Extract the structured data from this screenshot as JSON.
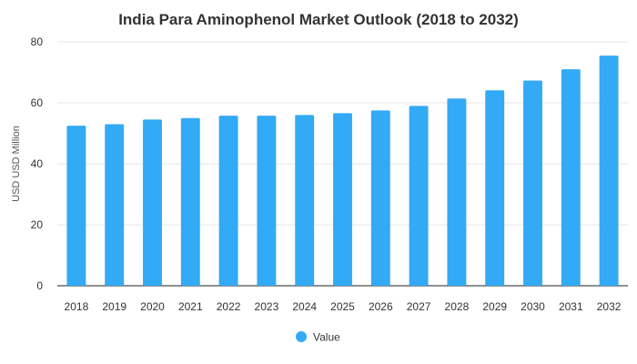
{
  "chart_data": {
    "type": "bar",
    "title": "India Para Aminophenol Market Outlook (2018 to 2032)",
    "xlabel": "",
    "ylabel": "USD USD Million",
    "categories": [
      "2018",
      "2019",
      "2020",
      "2021",
      "2022",
      "2023",
      "2024",
      "2025",
      "2026",
      "2027",
      "2028",
      "2029",
      "2030",
      "2031",
      "2032"
    ],
    "series": [
      {
        "name": "Value",
        "color": "#33aaf5",
        "values": [
          52.5,
          53.0,
          54.5,
          55.0,
          55.8,
          55.8,
          56.0,
          56.6,
          57.5,
          59.0,
          61.4,
          64.1,
          67.3,
          71.0,
          75.5
        ]
      }
    ],
    "ylim": [
      0,
      80
    ],
    "yticks": [
      0,
      20,
      40,
      60,
      80
    ],
    "grid": true,
    "legend_position": "bottom"
  }
}
